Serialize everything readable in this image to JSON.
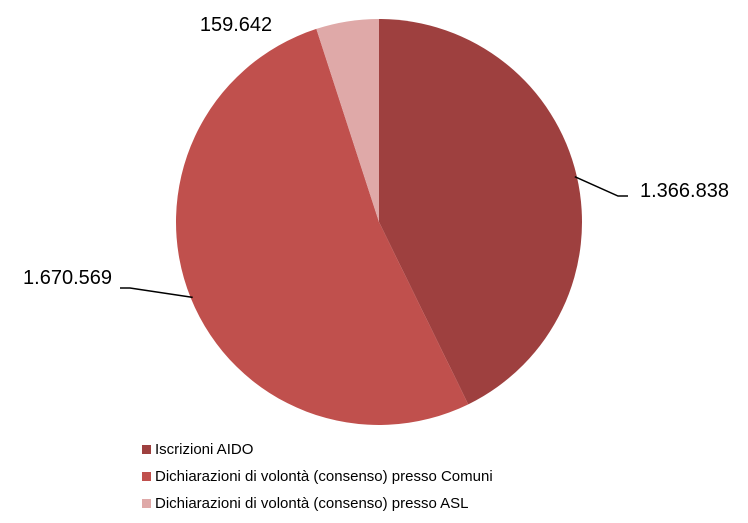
{
  "chart_data": {
    "type": "pie",
    "slices": [
      {
        "name": "Iscrizioni AIDO",
        "value": 1366838,
        "label": "1.366.838",
        "color": "#9E403F"
      },
      {
        "name": "Dichiarazioni di volontà (consenso) presso Comuni",
        "value": 1670569,
        "label": "1.670.569",
        "color": "#C0504D"
      },
      {
        "name": "Dichiarazioni di volontà (consenso) presso ASL",
        "value": 159642,
        "label": "159.642",
        "color": "#DFA9A8"
      }
    ],
    "start_angle_deg": 0,
    "direction": "clockwise",
    "legend_position": "bottom-left",
    "title": ""
  }
}
